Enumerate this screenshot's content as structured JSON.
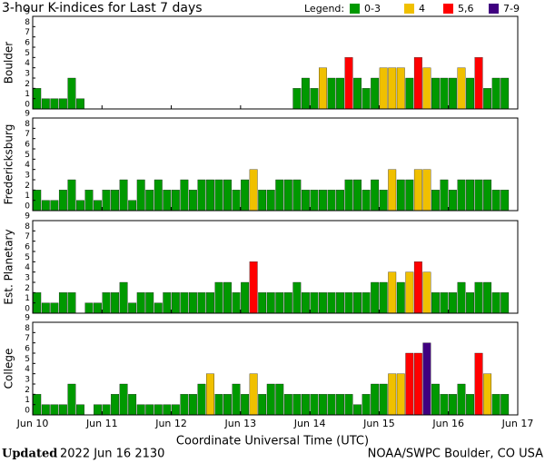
{
  "header": {
    "title": "3-hour K-indices for Last 7 days",
    "legend_title": "Legend:",
    "legend": [
      {
        "label": "0-3",
        "color": "#009900"
      },
      {
        "label": "4",
        "color": "#f0c000"
      },
      {
        "label": "5,6",
        "color": "#ff0000"
      },
      {
        "label": "7-9",
        "color": "#400080"
      }
    ]
  },
  "chart_data": [
    {
      "type": "bar",
      "ylabel": "Boulder",
      "ylim": [
        0,
        9
      ],
      "yticks": [
        0,
        1,
        2,
        3,
        4,
        5,
        6,
        7,
        8,
        9
      ],
      "values": [
        2,
        1,
        1,
        1,
        3,
        1,
        0,
        0,
        0,
        0,
        0,
        0,
        0,
        0,
        0,
        0,
        0,
        0,
        0,
        0,
        0,
        0,
        0,
        0,
        0,
        0,
        0,
        0,
        0,
        0,
        2,
        3,
        2,
        4,
        3,
        3,
        5,
        3,
        2,
        3,
        4,
        4,
        4,
        3,
        5,
        4,
        3,
        3,
        3,
        4,
        3,
        5,
        2,
        3,
        3,
        0
      ]
    },
    {
      "type": "bar",
      "ylabel": "Fredericksburg",
      "ylim": [
        0,
        9
      ],
      "yticks": [
        0,
        1,
        2,
        3,
        4,
        5,
        6,
        7,
        8,
        9
      ],
      "values": [
        2,
        1,
        1,
        2,
        3,
        1,
        2,
        1,
        2,
        2,
        3,
        1,
        3,
        2,
        3,
        2,
        2,
        3,
        2,
        3,
        3,
        3,
        3,
        2,
        3,
        4,
        2,
        2,
        3,
        3,
        3,
        2,
        2,
        2,
        2,
        2,
        3,
        3,
        2,
        3,
        2,
        4,
        3,
        3,
        4,
        4,
        2,
        3,
        2,
        3,
        3,
        3,
        3,
        2,
        2,
        0
      ]
    },
    {
      "type": "bar",
      "ylabel": "Est. Planetary",
      "ylim": [
        0,
        9
      ],
      "yticks": [
        0,
        1,
        2,
        3,
        4,
        5,
        6,
        7,
        8,
        9
      ],
      "values": [
        2,
        1,
        1,
        2,
        2,
        0,
        1,
        1,
        2,
        2,
        3,
        1,
        2,
        2,
        1,
        2,
        2,
        2,
        2,
        2,
        2,
        3,
        3,
        2,
        3,
        5,
        2,
        2,
        2,
        2,
        3,
        2,
        2,
        2,
        2,
        2,
        2,
        2,
        2,
        3,
        3,
        4,
        3,
        4,
        5,
        4,
        2,
        2,
        2,
        3,
        2,
        3,
        3,
        2,
        2,
        0
      ]
    },
    {
      "type": "bar",
      "ylabel": "College",
      "ylim": [
        0,
        9
      ],
      "yticks": [
        0,
        1,
        2,
        3,
        4,
        5,
        6,
        7,
        8,
        9
      ],
      "values": [
        2,
        1,
        1,
        1,
        3,
        1,
        0,
        1,
        1,
        2,
        3,
        2,
        1,
        1,
        1,
        1,
        1,
        2,
        2,
        3,
        4,
        2,
        2,
        3,
        2,
        4,
        2,
        3,
        3,
        2,
        2,
        2,
        2,
        2,
        2,
        2,
        2,
        1,
        2,
        3,
        3,
        4,
        4,
        6,
        6,
        7,
        3,
        2,
        2,
        3,
        2,
        6,
        4,
        2,
        2,
        0
      ]
    }
  ],
  "xticks": [
    "Jun 10",
    "Jun 11",
    "Jun 12",
    "Jun 13",
    "Jun 14",
    "Jun 15",
    "Jun 16",
    "Jun 17"
  ],
  "xlabel": "Coordinate Universal Time (UTC)",
  "footer": {
    "updated_label": "Updated",
    "updated": "2022 Jun 16 2130",
    "source": "NOAA/SWPC Boulder, CO USA"
  }
}
